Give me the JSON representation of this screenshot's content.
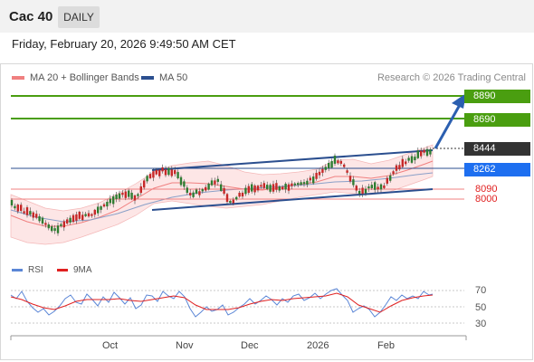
{
  "header": {
    "symbol": "Cac 40",
    "timeframe": "DAILY"
  },
  "timestamp": "Friday, February 20, 2026 9:49:50 AM CET",
  "legend": {
    "items": [
      {
        "label": "MA 20 + Bollinger Bands",
        "color": "#f08080"
      },
      {
        "label": "MA 50",
        "color": "#2b4f8f"
      }
    ],
    "credit": "Research © 2026 Trading Central"
  },
  "levels": {
    "target2": "8890",
    "target1": "8690",
    "last_price": "8444",
    "pivot": "8262",
    "support1": "8090",
    "support2": "8000"
  },
  "rsi": {
    "legend": [
      {
        "label": "RSI",
        "color": "#5b86d6"
      },
      {
        "label": "9MA",
        "color": "#e02020"
      }
    ],
    "levels": [
      "70",
      "50",
      "30"
    ]
  },
  "x_axis": {
    "months": [
      "Oct",
      "Nov",
      "Dec",
      "2026",
      "Feb"
    ]
  },
  "colors": {
    "green": "#4a9e10",
    "blue": "#1e6ff0",
    "trend": "#2b4f8f",
    "band": "#fde6e6",
    "red": "#e02020"
  }
}
